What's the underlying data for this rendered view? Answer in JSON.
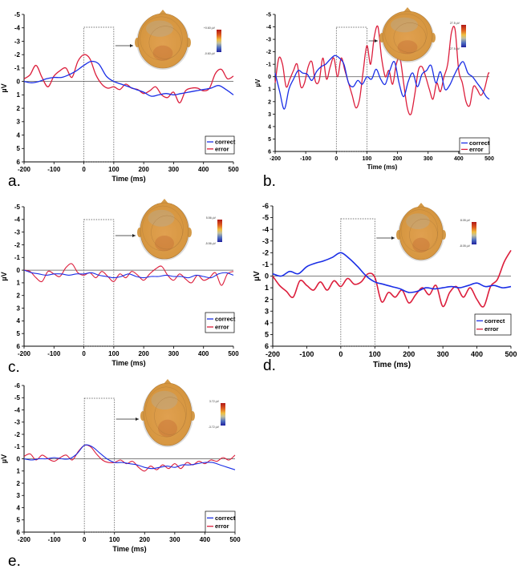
{
  "chart_data": [
    {
      "id": "a",
      "panel_label": "a.",
      "type": "line",
      "xlabel": "Time (ms)",
      "ylabel": "µV",
      "xlim": [
        -200,
        500
      ],
      "ylim": [
        -5,
        6
      ],
      "xticks": [
        -200,
        -100,
        0,
        100,
        200,
        300,
        400,
        500
      ],
      "yticks": [
        -5,
        -4,
        -3,
        -2,
        -1,
        0,
        1,
        2,
        3,
        4,
        5,
        6
      ],
      "window": [
        0,
        100
      ],
      "colorbar": {
        "max": "+0.60 µV",
        "min": "-0.60 µV"
      },
      "legend": "bottom-right",
      "series": [
        {
          "name": "correct",
          "color": "#1a2ee6",
          "x": [
            -200,
            -175,
            -150,
            -125,
            -100,
            -75,
            -50,
            -25,
            0,
            25,
            50,
            75,
            100,
            125,
            150,
            175,
            200,
            225,
            250,
            275,
            300,
            325,
            350,
            375,
            400,
            425,
            450,
            475,
            500
          ],
          "y": [
            0,
            0.1,
            0,
            -0.2,
            -0.3,
            -0.3,
            -0.5,
            -0.8,
            -1.2,
            -1.5,
            -1.3,
            -0.4,
            0,
            0.2,
            0.4,
            0.6,
            0.8,
            1.1,
            1.0,
            0.9,
            1.0,
            0.9,
            0.8,
            0.7,
            0.6,
            0.5,
            0.3,
            0.6,
            1.0
          ]
        },
        {
          "name": "error",
          "color": "#dc1e3c",
          "x": [
            -200,
            -180,
            -160,
            -140,
            -120,
            -100,
            -80,
            -60,
            -40,
            -20,
            0,
            20,
            40,
            60,
            80,
            100,
            120,
            140,
            160,
            180,
            200,
            220,
            240,
            260,
            280,
            300,
            320,
            340,
            360,
            380,
            400,
            420,
            440,
            460,
            480,
            500
          ],
          "y": [
            -0.2,
            -0.5,
            -1.2,
            -0.3,
            0.4,
            -0.4,
            -0.8,
            -1.0,
            -0.3,
            -1.5,
            -2.0,
            -1.7,
            -0.5,
            0.2,
            0.5,
            0.4,
            0.6,
            0.2,
            0.5,
            0.6,
            0.9,
            0.7,
            0.4,
            1.0,
            1.2,
            0.8,
            1.6,
            0.7,
            0.5,
            0.5,
            0.7,
            0.5,
            -0.6,
            -0.9,
            -0.2,
            -0.4
          ]
        }
      ]
    },
    {
      "id": "b",
      "panel_label": "b.",
      "type": "line",
      "xlabel": "Time (ms)",
      "ylabel": "µV",
      "xlim": [
        -200,
        500
      ],
      "ylim": [
        -5,
        6
      ],
      "xticks": [
        -200,
        -100,
        0,
        100,
        200,
        300,
        400,
        500
      ],
      "yticks": [
        -5,
        -4,
        -3,
        -2,
        -1,
        0,
        1,
        2,
        3,
        4,
        5,
        6
      ],
      "window": [
        0,
        100
      ],
      "colorbar": {
        "max": "27.5 µV",
        "min": "-27.5 µV"
      },
      "legend": "bottom-right",
      "series": [
        {
          "name": "correct",
          "color": "#1a2ee6",
          "x": [
            -200,
            -185,
            -170,
            -155,
            -140,
            -125,
            -110,
            -95,
            -80,
            -65,
            -50,
            -35,
            -20,
            -5,
            10,
            25,
            40,
            55,
            70,
            85,
            100,
            115,
            130,
            145,
            160,
            175,
            190,
            205,
            220,
            235,
            250,
            265,
            280,
            295,
            310,
            325,
            340,
            355,
            370,
            385,
            400,
            415,
            430,
            445,
            460,
            475,
            490,
            500
          ],
          "y": [
            -0.3,
            1.2,
            2.6,
            1.0,
            0.2,
            -0.5,
            -0.3,
            -0.2,
            0.3,
            -0.4,
            -0.8,
            -1.0,
            -1.4,
            -1.7,
            -1.5,
            -1.0,
            0.5,
            0.8,
            0.3,
            0.6,
            0,
            0.2,
            -0.6,
            0.2,
            0.6,
            -0.5,
            -1.2,
            0.5,
            1.6,
            0.4,
            -0.3,
            0.8,
            -0.2,
            -0.5,
            -0.9,
            0.5,
            -0.4,
            1.0,
            0.7,
            -0.1,
            -0.8,
            -1.2,
            -0.3,
            0,
            0.5,
            1.0,
            1.6,
            1.8
          ]
        },
        {
          "name": "error",
          "color": "#dc1e3c",
          "x": [
            -200,
            -188,
            -176,
            -164,
            -152,
            -140,
            -128,
            -116,
            -104,
            -92,
            -80,
            -68,
            -56,
            -44,
            -32,
            -20,
            -8,
            4,
            16,
            28,
            40,
            52,
            64,
            76,
            88,
            100,
            112,
            124,
            136,
            148,
            160,
            172,
            184,
            196,
            208,
            220,
            232,
            244,
            256,
            268,
            280,
            292,
            304,
            316,
            328,
            340,
            352,
            364,
            376,
            388,
            400,
            412,
            424,
            436,
            448,
            460,
            472,
            484,
            496,
            500
          ],
          "y": [
            0.5,
            -1.5,
            -1.0,
            0.8,
            0.2,
            -0.5,
            -1.0,
            0.8,
            0.5,
            -0.8,
            -1.2,
            0.4,
            0.3,
            -1.5,
            0.2,
            -0.8,
            -1.5,
            0,
            -1.5,
            -0.5,
            0.5,
            1.5,
            2.5,
            1.8,
            -0.5,
            -2.5,
            -1.0,
            -3.2,
            -4.0,
            -1.5,
            0,
            -0.5,
            0.6,
            -1.0,
            -1.5,
            0.5,
            2.5,
            3.0,
            1.5,
            -0.5,
            -0.8,
            0,
            1.0,
            1.8,
            0.5,
            1.2,
            0,
            -1.0,
            -3.5,
            -3.8,
            -0.5,
            0.5,
            2.0,
            2.3,
            0.8,
            1.0,
            1.5,
            1.0,
            -0.2,
            -0.3
          ]
        }
      ]
    },
    {
      "id": "c",
      "panel_label": "c.",
      "type": "line",
      "xlabel": "Time (ms)",
      "ylabel": "µV",
      "xlim": [
        -200,
        500
      ],
      "ylim": [
        -5,
        6
      ],
      "xticks": [
        -200,
        -100,
        0,
        100,
        200,
        300,
        400,
        500
      ],
      "yticks": [
        -5,
        -4,
        -3,
        -2,
        -1,
        0,
        1,
        2,
        3,
        4,
        5,
        6
      ],
      "window": [
        0,
        100
      ],
      "colorbar": {
        "max": "5.56 µV",
        "min": "-5.56 µV"
      },
      "legend": "bottom-right",
      "series": [
        {
          "name": "correct",
          "color": "#1a2ee6",
          "x": [
            -200,
            -175,
            -150,
            -125,
            -100,
            -75,
            -50,
            -25,
            0,
            25,
            50,
            75,
            100,
            125,
            150,
            175,
            200,
            225,
            250,
            275,
            300,
            325,
            350,
            375,
            400,
            425,
            450,
            475,
            500
          ],
          "y": [
            0,
            0.2,
            0.3,
            0.4,
            0.3,
            0.3,
            0.4,
            0.3,
            0.3,
            0.2,
            0.4,
            0.5,
            0.6,
            0.5,
            0.3,
            0.5,
            0.6,
            0.5,
            0.5,
            0.4,
            0.5,
            0.5,
            0.6,
            0.4,
            0.5,
            0.6,
            0.3,
            0.2,
            0.4
          ]
        },
        {
          "name": "error",
          "color": "#dc1e3c",
          "x": [
            -200,
            -180,
            -160,
            -140,
            -120,
            -100,
            -80,
            -60,
            -40,
            -20,
            0,
            20,
            40,
            60,
            80,
            100,
            120,
            140,
            160,
            180,
            200,
            220,
            240,
            260,
            280,
            300,
            320,
            340,
            360,
            380,
            400,
            420,
            440,
            460,
            480,
            500
          ],
          "y": [
            0,
            0.1,
            0.6,
            0.9,
            0.1,
            0.3,
            0.5,
            -0.2,
            -0.5,
            0.2,
            0.4,
            0.2,
            0.6,
            0.1,
            0.5,
            0.9,
            0.3,
            0.6,
            0.1,
            0.4,
            0.8,
            0.3,
            -0.1,
            -0.3,
            0.4,
            0.8,
            0.3,
            0.7,
            1.0,
            0.4,
            0.8,
            0.6,
            0.2,
            1.2,
            0.3,
            0.1
          ]
        }
      ]
    },
    {
      "id": "d",
      "panel_label": "d.",
      "type": "line",
      "xlabel": "Time (ms)",
      "ylabel": "µV",
      "xlim": [
        -200,
        500
      ],
      "ylim": [
        -6,
        6
      ],
      "xticks": [
        -200,
        -100,
        0,
        100,
        200,
        300,
        400,
        500
      ],
      "yticks": [
        -6,
        -5,
        -4,
        -3,
        -2,
        -1,
        0,
        1,
        2,
        3,
        4,
        5,
        6
      ],
      "window": [
        0,
        100
      ],
      "colorbar": {
        "max": "8.05 µV",
        "min": "-8.05 µV"
      },
      "legend": "bottom-right",
      "series": [
        {
          "name": "correct",
          "color": "#1a2ee6",
          "x": [
            -200,
            -175,
            -150,
            -125,
            -100,
            -75,
            -50,
            -25,
            0,
            25,
            50,
            75,
            100,
            125,
            150,
            175,
            200,
            225,
            250,
            275,
            300,
            325,
            350,
            375,
            400,
            425,
            450,
            475,
            500
          ],
          "y": [
            -0.2,
            0,
            -0.4,
            -0.2,
            -0.8,
            -1.1,
            -1.3,
            -1.6,
            -2.0,
            -1.5,
            -0.8,
            0,
            0.5,
            0.7,
            0.9,
            1.1,
            1.4,
            1.3,
            1.0,
            1.1,
            1.0,
            0.9,
            1.0,
            0.8,
            0.6,
            0.9,
            0.8,
            1.0,
            0.9
          ]
        },
        {
          "name": "error",
          "color": "#dc1e3c",
          "x": [
            -200,
            -180,
            -160,
            -140,
            -120,
            -100,
            -80,
            -60,
            -40,
            -20,
            0,
            20,
            40,
            60,
            80,
            100,
            120,
            140,
            160,
            180,
            200,
            220,
            240,
            260,
            280,
            300,
            320,
            340,
            360,
            380,
            400,
            420,
            440,
            460,
            480,
            500
          ],
          "y": [
            0,
            0.8,
            1.3,
            1.8,
            0.4,
            0.8,
            1.2,
            0.5,
            1.2,
            0.4,
            0.9,
            0.2,
            0.7,
            0.5,
            -0.2,
            0.1,
            2.2,
            1.4,
            1.8,
            1.2,
            2.3,
            1.6,
            1.0,
            1.6,
            0.8,
            2.6,
            1.4,
            0.9,
            1.8,
            1.0,
            2.0,
            2.6,
            0.9,
            0.3,
            -1.2,
            -2.2
          ]
        }
      ]
    },
    {
      "id": "e",
      "panel_label": "e.",
      "type": "line",
      "xlabel": "Time (ms)",
      "ylabel": "µV",
      "xlim": [
        -200,
        500
      ],
      "ylim": [
        -6,
        6
      ],
      "xticks": [
        -200,
        -100,
        0,
        100,
        200,
        300,
        400,
        500
      ],
      "yticks": [
        -6,
        -5,
        -4,
        -3,
        -2,
        -1,
        0,
        1,
        2,
        3,
        4,
        5,
        6
      ],
      "window": [
        0,
        100
      ],
      "colorbar": {
        "max": "3.72 µV",
        "min": "-3.72 µV"
      },
      "legend": "bottom-right",
      "series": [
        {
          "name": "correct",
          "color": "#1a2ee6",
          "x": [
            -200,
            -175,
            -150,
            -125,
            -100,
            -75,
            -50,
            -25,
            0,
            25,
            50,
            75,
            100,
            125,
            150,
            175,
            200,
            225,
            250,
            275,
            300,
            325,
            350,
            375,
            400,
            425,
            450,
            475,
            500
          ],
          "y": [
            0,
            0.1,
            0,
            0,
            -0.1,
            0,
            0,
            -0.4,
            -1.1,
            -1.0,
            -0.5,
            0,
            0.3,
            0.3,
            0.4,
            0.5,
            0.7,
            0.8,
            0.7,
            0.6,
            0.7,
            0.5,
            0.5,
            0.4,
            0.3,
            0.3,
            0.5,
            0.7,
            0.9
          ]
        },
        {
          "name": "error",
          "color": "#dc1e3c",
          "x": [
            -200,
            -180,
            -160,
            -140,
            -120,
            -100,
            -80,
            -60,
            -40,
            -20,
            0,
            20,
            40,
            60,
            80,
            100,
            120,
            140,
            160,
            180,
            200,
            220,
            240,
            260,
            280,
            300,
            320,
            340,
            360,
            380,
            400,
            420,
            440,
            460,
            480,
            500
          ],
          "y": [
            -0.2,
            -0.4,
            0.1,
            -0.3,
            0,
            0.2,
            -0.1,
            -0.3,
            0.1,
            -0.6,
            -1.1,
            -1.0,
            -0.4,
            0.1,
            0.3,
            0.3,
            0.1,
            0.4,
            0.2,
            0.7,
            1.0,
            0.6,
            0.9,
            0.5,
            0.8,
            0.4,
            0.8,
            0.3,
            0.5,
            0.2,
            0.4,
            0.1,
            0.2,
            -0.1,
            0.1,
            -0.3
          ]
        }
      ]
    }
  ]
}
